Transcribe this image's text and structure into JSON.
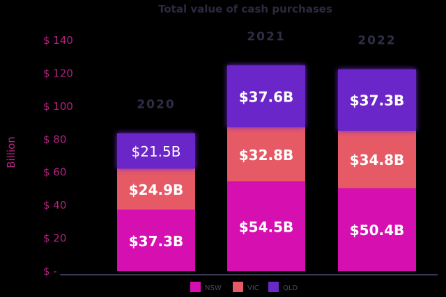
{
  "chart_data": {
    "type": "bar",
    "stacked": true,
    "title": "Total value of cash purchases",
    "ylabel": "Billion",
    "ylim": [
      0,
      140
    ],
    "yticks": [
      0,
      20,
      40,
      60,
      80,
      100,
      120,
      140
    ],
    "ytick_labels": [
      "$ -",
      "$ 20",
      "$ 40",
      "$ 60",
      "$ 80",
      "$ 100",
      "$ 120",
      "$ 140"
    ],
    "categories": [
      "2020",
      "2021",
      "2022"
    ],
    "series": [
      {
        "name": "NSW",
        "color": "#d60fb0",
        "values": [
          37.3,
          54.5,
          50.4
        ],
        "labels": [
          "$37.3B",
          "$54.5B",
          "$50.4B"
        ]
      },
      {
        "name": "VIC",
        "color": "#e65a66",
        "values": [
          24.9,
          32.8,
          34.8
        ],
        "labels": [
          "$24.9B",
          "$32.8B",
          "$34.8B"
        ]
      },
      {
        "name": "QLD",
        "color": "#6a28c8",
        "values": [
          21.5,
          37.6,
          37.3
        ],
        "labels": [
          "$21.5B",
          "$37.6B",
          "$37.3B"
        ]
      }
    ],
    "grid": false,
    "legend": "bottom-center"
  }
}
